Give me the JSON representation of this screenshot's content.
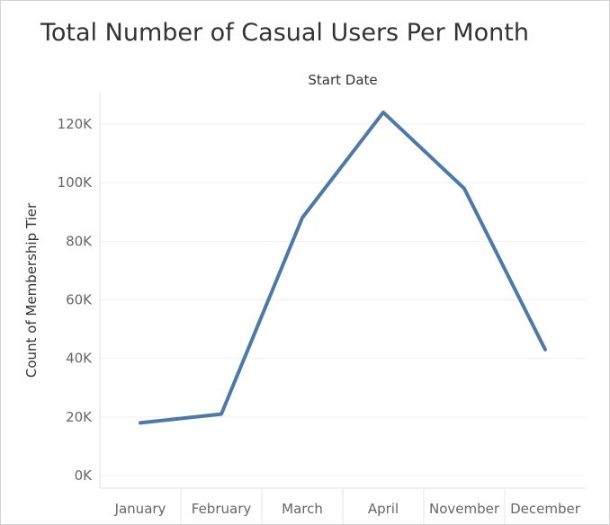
{
  "chart_data": {
    "type": "line",
    "title": "Total Number of Casual Users Per Month",
    "xlabel": "Start Date",
    "ylabel": "Count of Membership Tier",
    "categories": [
      "January",
      "February",
      "March",
      "April",
      "November",
      "December"
    ],
    "values": [
      18000,
      21000,
      88000,
      124000,
      98000,
      43000
    ],
    "ylim": [
      0,
      130000
    ],
    "yticks": [
      0,
      20000,
      40000,
      60000,
      80000,
      100000,
      120000
    ],
    "ytick_labels": [
      "0K",
      "20K",
      "40K",
      "60K",
      "80K",
      "100K",
      "120K"
    ],
    "grid": true,
    "colors": {
      "line": "#4e79a7",
      "grid": "#efefef",
      "axis_text": "#666666"
    }
  }
}
